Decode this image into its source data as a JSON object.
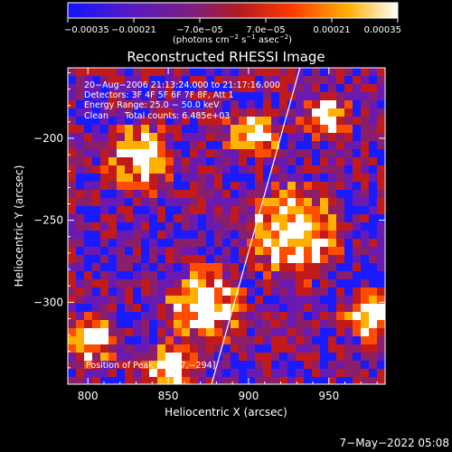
{
  "chart_data": {
    "type": "heatmap",
    "title": "Reconstructed RHESSI Image",
    "xlabel": "Heliocentric X (arcsec)",
    "ylabel": "Heliocentric Y (arcsec)",
    "xlim": [
      787.5,
      985
    ],
    "ylim": [
      -350,
      -157
    ],
    "x_ticks": [
      800,
      850,
      900,
      950
    ],
    "y_ticks": [
      -200,
      -250,
      -300
    ],
    "x_tick_labels": [
      "800",
      "850",
      "900",
      "950"
    ],
    "y_tick_labels": [
      "−200",
      "−250",
      "−300"
    ],
    "colorbar": {
      "range": [
        -0.00035,
        0.00035
      ],
      "ticks": [
        -0.00035,
        -0.00021,
        -7e-05,
        7e-05,
        0.00021,
        0.00035
      ],
      "tick_labels": [
        "−0.00035",
        "−0.00021",
        "−7.0e−05",
        "7.0e−05",
        "0.00021",
        "0.00035"
      ],
      "unit_label_main": "(photons cm",
      "unit_exp1": "−2",
      "unit_mid": " s",
      "unit_exp2": "−1",
      "unit_tail": " asec",
      "unit_exp3": "−2",
      "unit_close": ")",
      "colors": [
        "#1a1aff",
        "#6a1ab0",
        "#8a1e6a",
        "#c21a1a",
        "#ff4d00",
        "#ffb000",
        "#ffffff"
      ]
    },
    "annotations": {
      "line1": "20−Aug−2006 21:13:24.000 to 21:17:16.000",
      "line2": "Detectors: 3F 4F 5F 6F 7F 8F, Att 1",
      "line3": "Energy Range: 25.0 − 50.0 keV",
      "line4": "Clean      Total counts: 6.485e+03",
      "peak": "Position of Peak = [877,−294]"
    },
    "limb_line": [
      [
        877,
        -350
      ],
      [
        932,
        -157
      ]
    ],
    "peak_position": [
      877,
      -294
    ],
    "grid": "off",
    "note": "mottled pattern with bright patches near (925,-255), (870,-300), (830,-210), (975,-305)"
  },
  "footer": {
    "date": "7−May−2022 05:08"
  }
}
